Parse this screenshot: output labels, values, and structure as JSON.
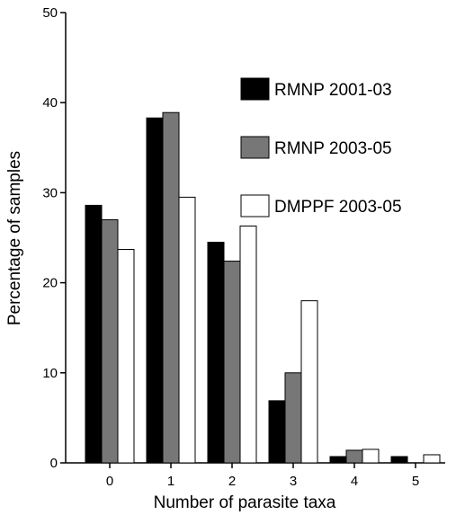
{
  "chart_data": {
    "type": "bar",
    "title": "",
    "xlabel": "Number of parasite taxa",
    "ylabel": "Percentage of samples",
    "ylim": [
      0,
      50
    ],
    "yticks": [
      0,
      10,
      20,
      30,
      40,
      50
    ],
    "categories": [
      "0",
      "1",
      "2",
      "3",
      "4",
      "5"
    ],
    "grid": false,
    "legend_position": "top-right",
    "series": [
      {
        "name": "RMNP 2001-03",
        "color": "#000000",
        "values": [
          28.6,
          38.3,
          24.5,
          6.9,
          0.7,
          0.7
        ]
      },
      {
        "name": "RMNP 2003-05",
        "color": "#777777",
        "values": [
          27.0,
          38.9,
          22.4,
          10.0,
          1.4,
          0.0
        ]
      },
      {
        "name": "DMPPF 2003-05",
        "color": "#ffffff",
        "values": [
          23.7,
          29.5,
          26.3,
          18.0,
          1.5,
          0.9
        ]
      }
    ]
  }
}
